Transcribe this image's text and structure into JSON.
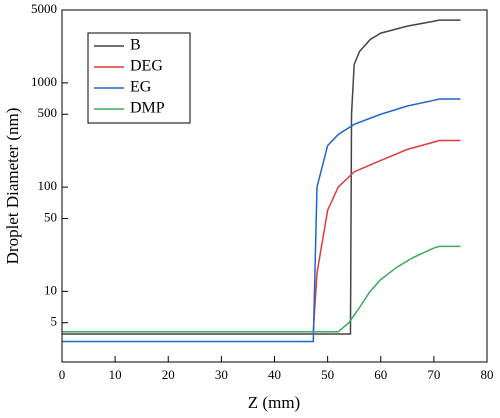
{
  "chart_data": {
    "type": "line",
    "xlabel": "Z (mm)",
    "ylabel": "Droplet Diameter (nm)",
    "xlim": [
      0,
      80
    ],
    "xticks": [
      0,
      10,
      20,
      30,
      40,
      50,
      60,
      70,
      80
    ],
    "ylim": [
      2.1,
      5000
    ],
    "yticks": [
      5,
      10,
      50,
      100,
      500,
      1000,
      5000
    ],
    "yscale": "log",
    "legend": "upper left",
    "series": [
      {
        "name": "B",
        "color": "#444444",
        "x": [
          0,
          54.3,
          54.5,
          55,
          56,
          58,
          60,
          65,
          70,
          71,
          75
        ],
        "values": [
          3.9,
          3.9,
          500,
          1500,
          2000,
          2600,
          3000,
          3500,
          3900,
          4000,
          4000
        ]
      },
      {
        "name": "DEG",
        "color": "#e03a3a",
        "x": [
          0,
          47.3,
          48,
          50,
          52,
          55,
          60,
          65,
          70,
          71,
          75
        ],
        "values": [
          4.1,
          4.1,
          15,
          60,
          100,
          140,
          180,
          230,
          270,
          280,
          280
        ]
      },
      {
        "name": "EG",
        "color": "#1f66c9",
        "x": [
          0,
          47.3,
          48,
          50,
          52,
          55,
          60,
          65,
          70,
          71,
          75
        ],
        "values": [
          3.3,
          3.3,
          100,
          250,
          320,
          400,
          500,
          600,
          680,
          700,
          700
        ]
      },
      {
        "name": "DMP",
        "color": "#3aaa5e",
        "x": [
          0,
          52,
          54,
          56,
          58,
          60,
          63,
          66,
          70,
          71,
          75
        ],
        "values": [
          4.1,
          4.1,
          5,
          7,
          10,
          13,
          17,
          21,
          26,
          27,
          27
        ]
      }
    ]
  }
}
